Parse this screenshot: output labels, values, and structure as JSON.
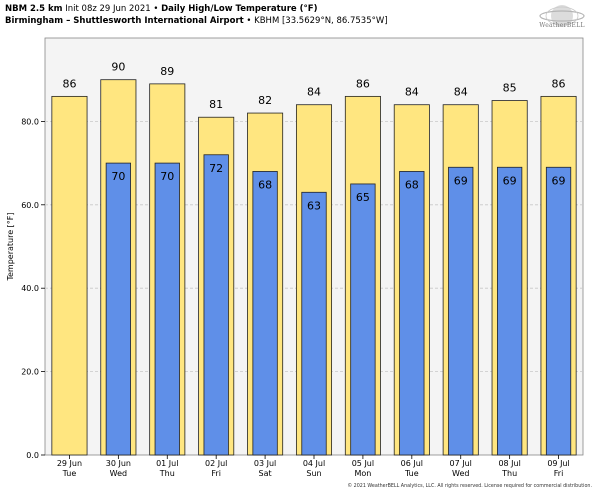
{
  "header": {
    "model": "NBM 2.5 km",
    "init": "Init 08z 29 Jun 2021",
    "sep": "•",
    "product": "Daily High/Low Temperature (°F)",
    "station_name": "Birmingham – Shuttlesworth International Airport",
    "station_info": "KBHM [33.5629°N, 86.7535°W]"
  },
  "logo": {
    "text": "WeatherBELL",
    "icon": "weatherbell-logo-icon"
  },
  "colors": {
    "high_fill": "#ffe680",
    "low_fill": "#5f8fe8",
    "bar_stroke": "#222222",
    "plot_bg": "#f4f4f4",
    "grid": "#c8c8c8"
  },
  "chart_data": {
    "type": "bar",
    "title": "Daily High/Low Temperature (°F)",
    "xlabel": "",
    "ylabel": "Temperature [°F]",
    "ylim": [
      0,
      100
    ],
    "yticks": [
      "0.0",
      "20.0",
      "40.0",
      "60.0",
      "80.0"
    ],
    "grid": true,
    "categories": [
      {
        "date": "29 Jun",
        "day": "Tue"
      },
      {
        "date": "30 Jun",
        "day": "Wed"
      },
      {
        "date": "01 Jul",
        "day": "Thu"
      },
      {
        "date": "02 Jul",
        "day": "Fri"
      },
      {
        "date": "03 Jul",
        "day": "Sat"
      },
      {
        "date": "04 Jul",
        "day": "Sun"
      },
      {
        "date": "05 Jul",
        "day": "Mon"
      },
      {
        "date": "06 Jul",
        "day": "Tue"
      },
      {
        "date": "07 Jul",
        "day": "Wed"
      },
      {
        "date": "08 Jul",
        "day": "Thu"
      },
      {
        "date": "09 Jul",
        "day": "Fri"
      }
    ],
    "series": [
      {
        "key": "high",
        "values": [
          86,
          90,
          89,
          81,
          82,
          84,
          86,
          84,
          84,
          85,
          86
        ]
      },
      {
        "key": "low",
        "values": [
          null,
          70,
          70,
          72,
          68,
          63,
          65,
          68,
          69,
          69,
          69
        ]
      }
    ]
  },
  "footer": {
    "copyright": "© 2021 WeatherBELL Analytics, LLC. All rights reserved. License required for commercial distribution."
  }
}
